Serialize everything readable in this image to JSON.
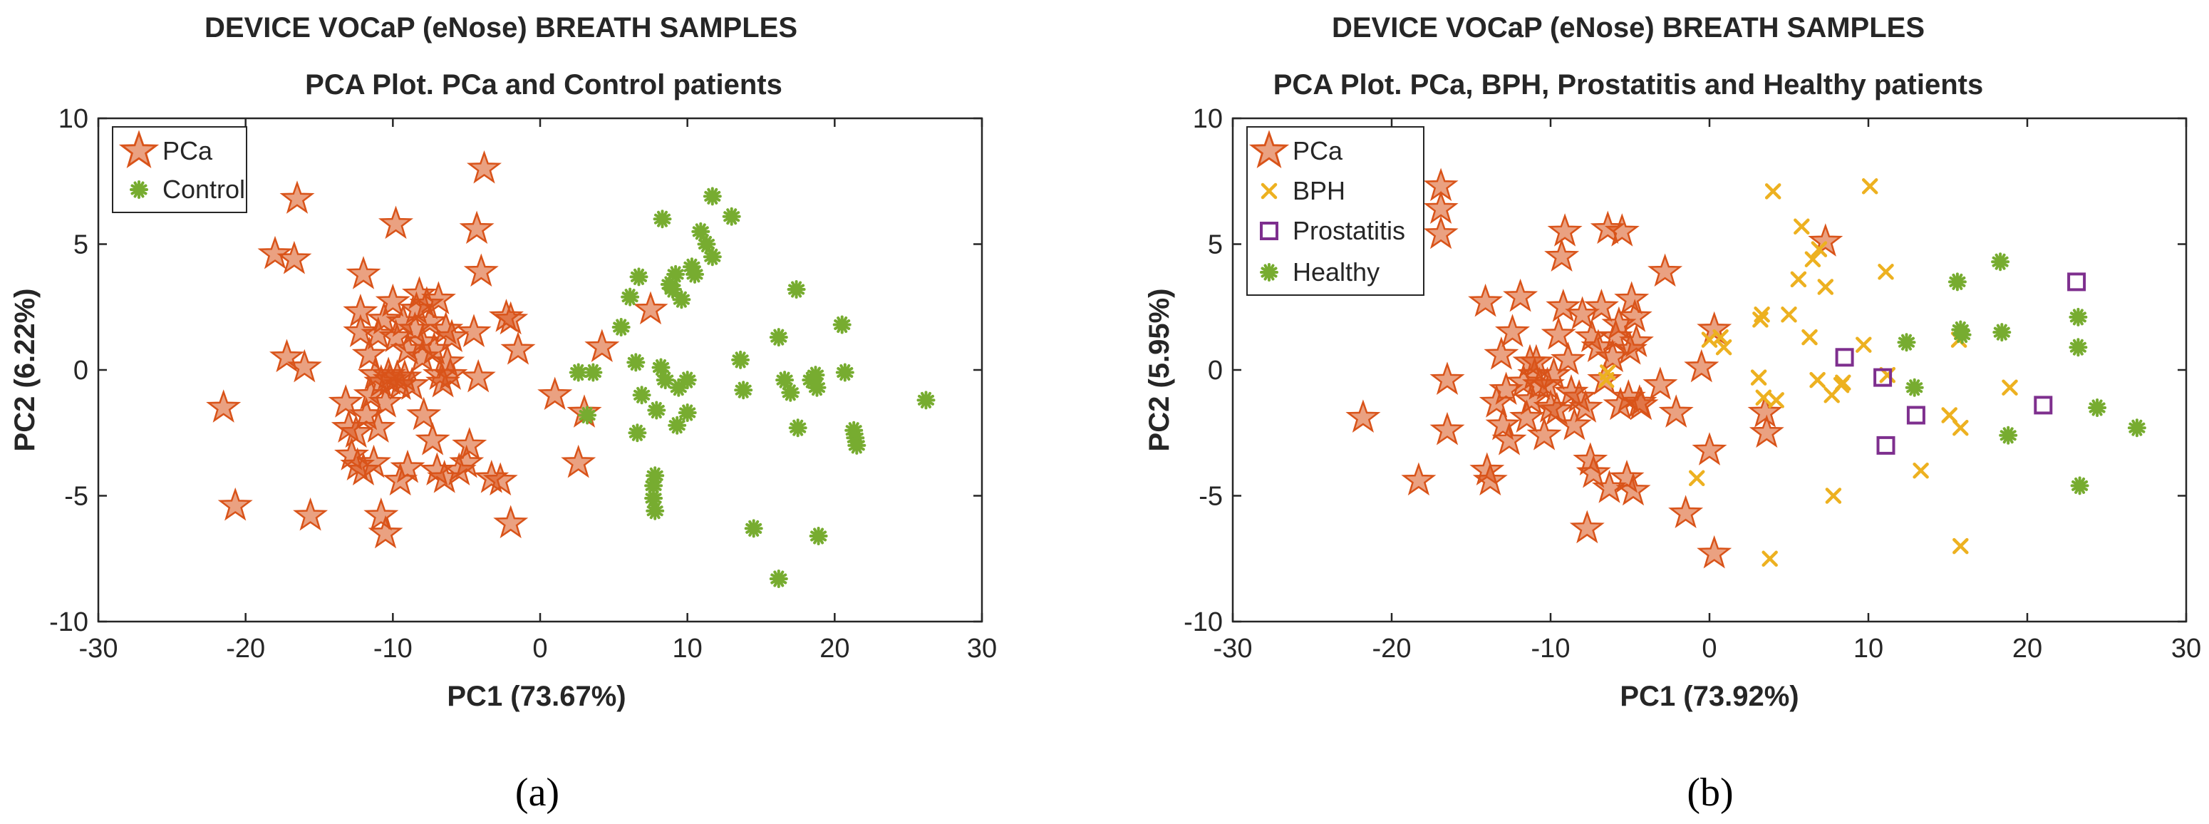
{
  "chart_data": [
    {
      "type": "scatter",
      "title_line1": "DEVICE VOCaP (eNose) BREATH SAMPLES",
      "title_line2": "PCA Plot. PCa and Control patients",
      "xlabel": "PC1 (73.67%)",
      "ylabel": "PC2 (6.22%)",
      "xlim": [
        -30,
        30
      ],
      "ylim": [
        -10,
        10
      ],
      "xticks": [
        -30,
        -20,
        -10,
        0,
        10,
        20,
        30
      ],
      "yticks": [
        -10,
        -5,
        0,
        5,
        10
      ],
      "legend_position": "top-left",
      "caption": "(a)",
      "series": [
        {
          "name": "PCa",
          "marker": "star",
          "color": "#D95319",
          "points": [
            [
              -21.5,
              -1.5
            ],
            [
              -20.7,
              -5.4
            ],
            [
              -18,
              4.6
            ],
            [
              -17.2,
              0.5
            ],
            [
              -16.7,
              4.4
            ],
            [
              -16.5,
              6.8
            ],
            [
              -16,
              0.1
            ],
            [
              -15.6,
              -5.8
            ],
            [
              -13.2,
              -1.3
            ],
            [
              -13,
              -2.3
            ],
            [
              -12.8,
              -3.4
            ],
            [
              -12.5,
              -2.5
            ],
            [
              -12.4,
              -3.8
            ],
            [
              -12.2,
              1.5
            ],
            [
              -12.2,
              2.3
            ],
            [
              -12,
              -4
            ],
            [
              -12,
              3.8
            ],
            [
              -11.8,
              -1.8
            ],
            [
              -11.6,
              0.6
            ],
            [
              -11.5,
              -1
            ],
            [
              -11.3,
              -3.7
            ],
            [
              -11.2,
              -0.2
            ],
            [
              -11,
              -2.3
            ],
            [
              -11,
              1.4
            ],
            [
              -10.8,
              -0.5
            ],
            [
              -10.8,
              -5.8
            ],
            [
              -10.6,
              2
            ],
            [
              -10.5,
              -6.5
            ],
            [
              -10.5,
              -1.3
            ],
            [
              -10.3,
              -0.2
            ],
            [
              -10.2,
              -0.4
            ],
            [
              -10,
              2.7
            ],
            [
              -9.8,
              5.8
            ],
            [
              -9.8,
              1.3
            ],
            [
              -9.7,
              -0.3
            ],
            [
              -9.5,
              -0.6
            ],
            [
              -9.5,
              -4.4
            ],
            [
              -9.3,
              1.9
            ],
            [
              -9.2,
              -0.3
            ],
            [
              -9,
              -3.9
            ],
            [
              -9,
              0.8
            ],
            [
              -8.7,
              -0.6
            ],
            [
              -8.5,
              1.6
            ],
            [
              -8.4,
              2.4
            ],
            [
              -8.2,
              3
            ],
            [
              -8,
              0.5
            ],
            [
              -8,
              1.1
            ],
            [
              -7.9,
              -1.8
            ],
            [
              -7.7,
              2.6
            ],
            [
              -7.5,
              1.9
            ],
            [
              -7.3,
              -2.8
            ],
            [
              -7.2,
              0.8
            ],
            [
              -7,
              -4
            ],
            [
              -6.9,
              2.8
            ],
            [
              -6.8,
              -0.2
            ],
            [
              -6.6,
              -0.5
            ],
            [
              -6.5,
              -4.3
            ],
            [
              -6.4,
              1.6
            ],
            [
              -6.3,
              0.3
            ],
            [
              -6.1,
              -0.2
            ],
            [
              -6,
              1.3
            ],
            [
              -5.5,
              -4
            ],
            [
              -5,
              -3.7
            ],
            [
              -4.8,
              -3
            ],
            [
              -4.5,
              1.5
            ],
            [
              -4.3,
              5.6
            ],
            [
              -4.2,
              -0.3
            ],
            [
              -4,
              3.9
            ],
            [
              -3.8,
              8
            ],
            [
              -3.3,
              -4.3
            ],
            [
              -2.7,
              -4.4
            ],
            [
              -2.3,
              2.1
            ],
            [
              -2,
              -6.1
            ],
            [
              -2,
              2
            ],
            [
              -1.5,
              0.8
            ],
            [
              1,
              -1
            ],
            [
              2.6,
              -3.7
            ],
            [
              3,
              -1.7
            ],
            [
              4.2,
              0.9
            ],
            [
              7.5,
              2.4
            ]
          ]
        },
        {
          "name": "Control",
          "marker": "asterisk",
          "color": "#77AC30",
          "points": [
            [
              2.6,
              -0.1
            ],
            [
              3.2,
              -1.8
            ],
            [
              3.6,
              -0.1
            ],
            [
              5.5,
              1.7
            ],
            [
              6.1,
              2.9
            ],
            [
              6.5,
              0.3
            ],
            [
              6.6,
              -2.5
            ],
            [
              6.7,
              3.7
            ],
            [
              6.9,
              -1
            ],
            [
              7.7,
              -5.1
            ],
            [
              7.7,
              -4.6
            ],
            [
              7.8,
              -4.2
            ],
            [
              7.8,
              -5.6
            ],
            [
              7.9,
              -1.6
            ],
            [
              8.2,
              0.1
            ],
            [
              8.3,
              6
            ],
            [
              8.5,
              -0.4
            ],
            [
              8.8,
              3.4
            ],
            [
              9,
              3.2
            ],
            [
              9.2,
              3.8
            ],
            [
              9.3,
              -2.2
            ],
            [
              9.4,
              -0.7
            ],
            [
              9.6,
              2.8
            ],
            [
              10,
              -0.4
            ],
            [
              10,
              -1.7
            ],
            [
              10.3,
              4.1
            ],
            [
              10.5,
              3.8
            ],
            [
              10.9,
              5.5
            ],
            [
              11.3,
              5
            ],
            [
              11.7,
              6.9
            ],
            [
              11.7,
              4.5
            ],
            [
              13,
              6.1
            ],
            [
              13.6,
              0.4
            ],
            [
              13.8,
              -0.8
            ],
            [
              14.5,
              -6.3
            ],
            [
              16.2,
              1.3
            ],
            [
              16.2,
              -8.3
            ],
            [
              16.6,
              -0.4
            ],
            [
              17,
              -0.9
            ],
            [
              17.4,
              3.2
            ],
            [
              17.5,
              -2.3
            ],
            [
              18.4,
              -0.4
            ],
            [
              18.7,
              -0.2
            ],
            [
              18.8,
              -0.7
            ],
            [
              18.9,
              -6.6
            ],
            [
              20.5,
              1.8
            ],
            [
              20.7,
              -0.1
            ],
            [
              21.3,
              -2.4
            ],
            [
              21.4,
              -2.7
            ],
            [
              21.5,
              -3
            ],
            [
              26.2,
              -1.2
            ]
          ]
        }
      ]
    },
    {
      "type": "scatter",
      "title_line1": "DEVICE VOCaP (eNose) BREATH SAMPLES",
      "title_line2": "PCA Plot. PCa, BPH, Prostatitis and Healthy patients",
      "xlabel": "PC1 (73.92%)",
      "ylabel": "PC2 (5.95%)",
      "xlim": [
        -30,
        30
      ],
      "ylim": [
        -10,
        10
      ],
      "xticks": [
        -30,
        -20,
        -10,
        0,
        10,
        20,
        30
      ],
      "yticks": [
        -10,
        -5,
        0,
        5,
        10
      ],
      "legend_position": "top-left",
      "caption": "(b)",
      "series": [
        {
          "name": "PCa",
          "marker": "star",
          "color": "#D95319",
          "points": [
            [
              -21.8,
              -1.9
            ],
            [
              -18.3,
              -4.4
            ],
            [
              -16.9,
              7.3
            ],
            [
              -16.9,
              6.4
            ],
            [
              -16.9,
              5.4
            ],
            [
              -16.5,
              -0.4
            ],
            [
              -16.5,
              -2.4
            ],
            [
              -14.1,
              2.7
            ],
            [
              -14,
              -4
            ],
            [
              -13.8,
              -4.4
            ],
            [
              -13.4,
              -1.3
            ],
            [
              -13.1,
              0.6
            ],
            [
              -13,
              -2.2
            ],
            [
              -12.8,
              -0.8
            ],
            [
              -12.6,
              -2.8
            ],
            [
              -12.4,
              1.5
            ],
            [
              -11.9,
              2.9
            ],
            [
              -11.7,
              -0.5
            ],
            [
              -11.5,
              -1.9
            ],
            [
              -11.3,
              0.3
            ],
            [
              -11.2,
              -1.2
            ],
            [
              -11,
              -0.2
            ],
            [
              -10.9,
              0.3
            ],
            [
              -10.7,
              -0.6
            ],
            [
              -10.4,
              -2.6
            ],
            [
              -10.2,
              -0.6
            ],
            [
              -10,
              -1.5
            ],
            [
              -9.8,
              -0.2
            ],
            [
              -9.6,
              -1.6
            ],
            [
              -9.5,
              1.4
            ],
            [
              -9.3,
              4.5
            ],
            [
              -9.2,
              2.5
            ],
            [
              -9.1,
              5.5
            ],
            [
              -8.9,
              0.4
            ],
            [
              -8.7,
              -0.9
            ],
            [
              -8.5,
              -2.2
            ],
            [
              -8.2,
              -1.1
            ],
            [
              -8,
              2.2
            ],
            [
              -7.8,
              -1.5
            ],
            [
              -7.7,
              -6.3
            ],
            [
              -7.5,
              -3.6
            ],
            [
              -7.4,
              1.3
            ],
            [
              -7.3,
              -4.1
            ],
            [
              -7,
              0.9
            ],
            [
              -6.8,
              2.5
            ],
            [
              -6.6,
              -0.4
            ],
            [
              -6.4,
              5.6
            ],
            [
              -6.3,
              -4.7
            ],
            [
              -6.1,
              0.5
            ],
            [
              -5.9,
              1.3
            ],
            [
              -5.7,
              1.8
            ],
            [
              -5.6,
              -1.4
            ],
            [
              -5.5,
              5.5
            ],
            [
              -5.2,
              -4.3
            ],
            [
              -5.1,
              -1.1
            ],
            [
              -5,
              0.8
            ],
            [
              -4.9,
              2.8
            ],
            [
              -4.8,
              -4.8
            ],
            [
              -4.7,
              2.1
            ],
            [
              -4.6,
              1.1
            ],
            [
              -4.4,
              -1.3
            ],
            [
              -4.3,
              -1.4
            ],
            [
              -3.1,
              -0.6
            ],
            [
              -2.8,
              3.9
            ],
            [
              -2.1,
              -1.7
            ],
            [
              -1.5,
              -5.7
            ],
            [
              -0.5,
              0.1
            ],
            [
              0,
              -3.2
            ],
            [
              0.3,
              1.6
            ],
            [
              0.3,
              -7.3
            ],
            [
              3.5,
              -1.7
            ],
            [
              3.6,
              -2.5
            ],
            [
              7.3,
              5.1
            ]
          ]
        },
        {
          "name": "BPH",
          "marker": "x",
          "color": "#EDB120",
          "points": [
            [
              -6.5,
              -0.4
            ],
            [
              -6.4,
              -0.1
            ],
            [
              -0.8,
              -4.3
            ],
            [
              0,
              1.2
            ],
            [
              0.7,
              1.3
            ],
            [
              0.9,
              0.9
            ],
            [
              3.1,
              -0.3
            ],
            [
              3.2,
              2
            ],
            [
              3.3,
              2.2
            ],
            [
              3.4,
              -1.1
            ],
            [
              3.8,
              -7.5
            ],
            [
              4,
              7.1
            ],
            [
              4.2,
              -1.2
            ],
            [
              5,
              2.2
            ],
            [
              5.6,
              3.6
            ],
            [
              5.8,
              5.7
            ],
            [
              6.3,
              1.3
            ],
            [
              6.5,
              4.4
            ],
            [
              6.8,
              -0.4
            ],
            [
              6.9,
              4.8
            ],
            [
              7.3,
              3.3
            ],
            [
              7.7,
              -1
            ],
            [
              7.8,
              -5
            ],
            [
              8.3,
              -0.6
            ],
            [
              8.4,
              -0.5
            ],
            [
              9.7,
              1
            ],
            [
              10.1,
              7.3
            ],
            [
              11.1,
              3.9
            ],
            [
              11.2,
              -0.2
            ],
            [
              13.3,
              -4
            ],
            [
              15.1,
              -1.8
            ],
            [
              15.7,
              1.2
            ],
            [
              15.8,
              -2.3
            ],
            [
              15.8,
              -7
            ],
            [
              18.9,
              -0.7
            ]
          ]
        },
        {
          "name": "Prostatitis",
          "marker": "square",
          "color": "#7E2F8E",
          "points": [
            [
              8.5,
              0.5
            ],
            [
              10.9,
              -0.3
            ],
            [
              11.1,
              -3
            ],
            [
              13,
              -1.8
            ],
            [
              21,
              -1.4
            ],
            [
              23.1,
              3.5
            ]
          ]
        },
        {
          "name": "Healthy",
          "marker": "asterisk",
          "color": "#77AC30",
          "points": [
            [
              12.4,
              1.1
            ],
            [
              12.9,
              -0.7
            ],
            [
              15.6,
              3.5
            ],
            [
              15.8,
              1.6
            ],
            [
              15.9,
              1.4
            ],
            [
              18.3,
              4.3
            ],
            [
              18.4,
              1.5
            ],
            [
              18.8,
              -2.6
            ],
            [
              23.2,
              2.1
            ],
            [
              23.2,
              0.9
            ],
            [
              23.3,
              -4.6
            ],
            [
              24.4,
              -1.5
            ],
            [
              26.9,
              -2.3
            ]
          ]
        }
      ]
    }
  ]
}
